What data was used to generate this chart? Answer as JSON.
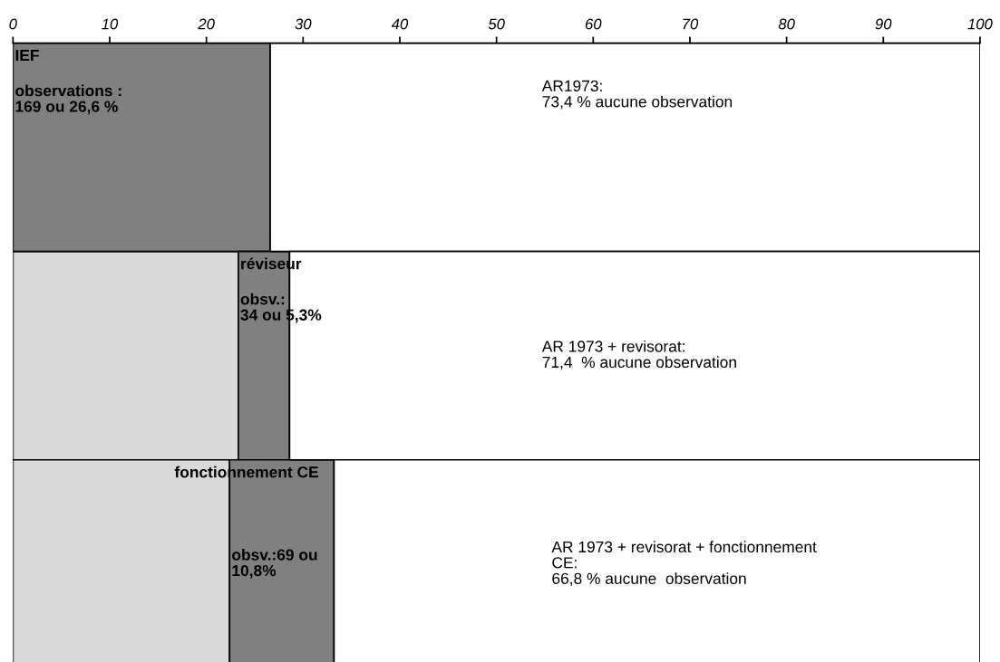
{
  "chart_data": {
    "type": "bar",
    "orientation": "horizontal",
    "stacked": true,
    "categories": [
      null,
      null,
      null
    ],
    "series": [
      {
        "color": "#d9d9d9",
        "values": [
          0,
          23.3,
          22.4
        ]
      },
      {
        "color": "#808080",
        "values": [
          26.6,
          5.3,
          10.8
        ]
      },
      {
        "color": "#ffffff",
        "values": [
          73.4,
          71.4,
          66.8
        ]
      }
    ],
    "xlim": [
      0,
      100
    ],
    "xticks": [
      0,
      10,
      20,
      30,
      40,
      50,
      60,
      70,
      80,
      90,
      100
    ],
    "grid": false,
    "legend": false,
    "annotations": [
      "IEF",
      "observations :\n169 ou 26,6 %",
      "AR1973:\n73,4 % aucune observation",
      "réviseur",
      "obsv.:\n34 ou 5,3%",
      "AR 1973 + revisorat:\n71,4  % aucune observation",
      "fonctionnement CE",
      "obsv.:69 ou\n10,8%",
      "AR 1973 + revisorat + fonctionnement\nCE:\n66,8 % aucune  observation"
    ]
  }
}
